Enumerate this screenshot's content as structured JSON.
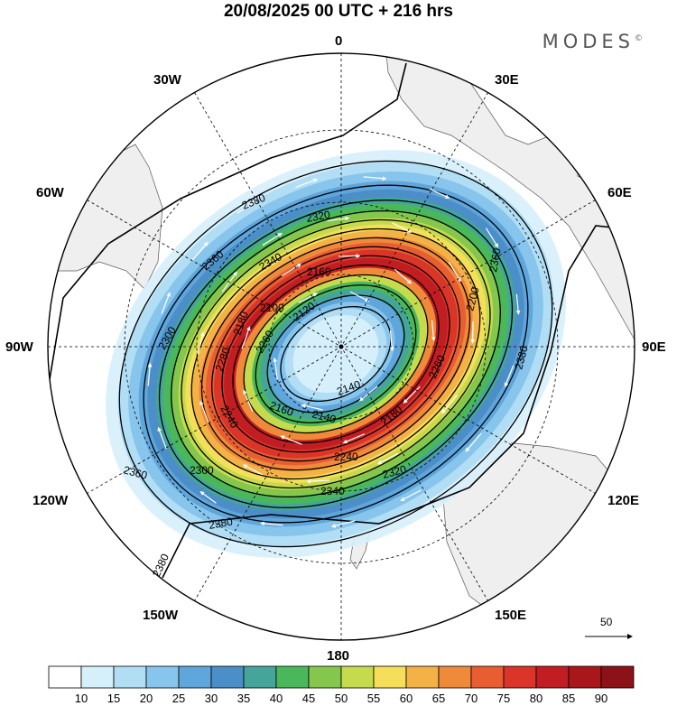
{
  "title": "20/08/2025  00 UTC  + 216 hrs",
  "brand": "MODES",
  "brand_mark": "©",
  "longitude_labels": {
    "top": "0",
    "e30": "30E",
    "e60": "60E",
    "e90": "90E",
    "e120": "120E",
    "e150": "150E",
    "bottom": "180",
    "w150": "150W",
    "w120": "120W",
    "w90": "90W",
    "w60": "60W",
    "w30": "30W"
  },
  "contour_labels": [
    "2380",
    "2360",
    "2320",
    "2340",
    "2300",
    "2280",
    "2260",
    "2240",
    "2200",
    "2180",
    "2160",
    "2140",
    "2120",
    "2100",
    "2360",
    "2380",
    "2340",
    "2360",
    "2380",
    "2380",
    "2300",
    "2320",
    "2240",
    "2160",
    "2140",
    "2180",
    "2260"
  ],
  "colorbar": {
    "labels": [
      "10",
      "15",
      "20",
      "25",
      "30",
      "35",
      "40",
      "45",
      "50",
      "55",
      "60",
      "65",
      "70",
      "75",
      "80",
      "85",
      "90"
    ],
    "colors": [
      "#ffffff",
      "#d6f0fb",
      "#b2def5",
      "#88c5ec",
      "#5fa6dc",
      "#4b8ec8",
      "#45a59a",
      "#4ab85a",
      "#84c74c",
      "#c5db4d",
      "#f5df5a",
      "#f4b246",
      "#ef8a3a",
      "#e85d32",
      "#da3528",
      "#c11d22",
      "#a9171d",
      "#8c1218"
    ]
  },
  "reference_vector": {
    "value": "50"
  }
}
